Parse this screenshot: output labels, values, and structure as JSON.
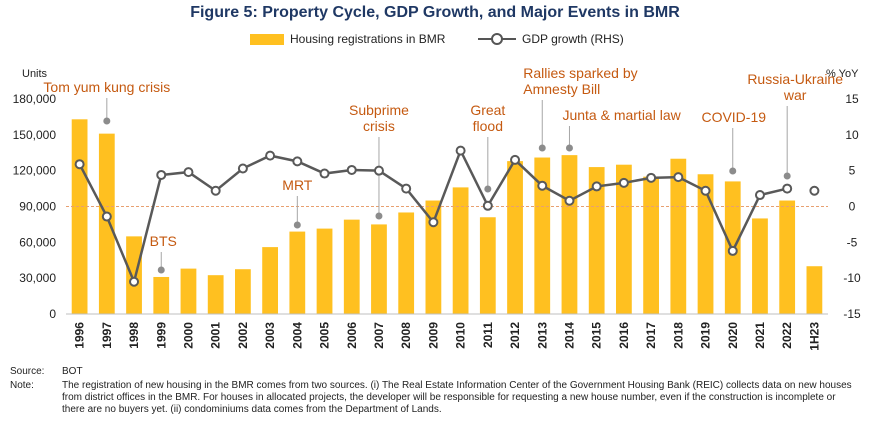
{
  "title": "Figure 5: Property Cycle, GDP Growth, and Major Events in BMR",
  "legend": {
    "bars": "Housing registrations in BMR",
    "line": "GDP growth (RHS)"
  },
  "colors": {
    "bar": "#ffc020",
    "line": "#595959",
    "annotation": "#c55a11",
    "zero_line": "#e8a070"
  },
  "chart_data": {
    "type": "bar",
    "title": "Figure 5: Property Cycle, GDP Growth, and Major Events in BMR",
    "categories": [
      "1996",
      "1997",
      "1998",
      "1999",
      "2000",
      "2001",
      "2002",
      "2003",
      "2004",
      "2005",
      "2006",
      "2007",
      "2008",
      "2009",
      "2010",
      "2011",
      "2012",
      "2013",
      "2014",
      "2015",
      "2016",
      "2017",
      "2018",
      "2019",
      "2020",
      "2021",
      "2022",
      "1H23"
    ],
    "y_left_label": "Units",
    "y_right_label": "% YoY",
    "ylim_left": [
      0,
      180000
    ],
    "ylim_right": [
      -15,
      15
    ],
    "yticks_left": [
      "0",
      "30,000",
      "60,000",
      "90,000",
      "120,000",
      "150,000",
      "180,000"
    ],
    "yticks_right": [
      "-15",
      "-10",
      "-5",
      "0",
      "5",
      "10",
      "15"
    ],
    "series": [
      {
        "name": "Housing registrations in BMR",
        "type": "bar",
        "axis": "left",
        "values": [
          163000,
          151000,
          65000,
          31000,
          38000,
          32500,
          37500,
          56000,
          69000,
          71500,
          79000,
          75000,
          85000,
          95000,
          106000,
          81000,
          128000,
          131000,
          133000,
          123000,
          125000,
          115000,
          130000,
          117000,
          111000,
          80000,
          95000,
          40000
        ]
      },
      {
        "name": "GDP growth (RHS)",
        "type": "line",
        "axis": "right",
        "values": [
          5.9,
          -1.4,
          -10.5,
          4.4,
          4.8,
          2.2,
          5.3,
          7.1,
          6.3,
          4.6,
          5.1,
          5.0,
          2.5,
          -2.2,
          7.8,
          0.1,
          6.5,
          2.9,
          0.8,
          2.8,
          3.3,
          4.0,
          4.1,
          2.2,
          -6.2,
          1.6,
          2.5,
          2.2
        ]
      }
    ],
    "annotations": [
      {
        "label": "Tom yum kung crisis",
        "category": "1997"
      },
      {
        "label": "BTS",
        "category": "1999"
      },
      {
        "label": "MRT",
        "category": "2004"
      },
      {
        "label": "Subprime crisis",
        "category": "2007"
      },
      {
        "label": "Great flood",
        "category": "2011"
      },
      {
        "label": "Rallies sparked by Amnesty Bill",
        "category": "2013"
      },
      {
        "label": "Junta & martial law",
        "category": "2014"
      },
      {
        "label": "COVID-19",
        "category": "2020"
      },
      {
        "label": "Russia-Ukraine war",
        "category": "2022"
      }
    ]
  },
  "footer": {
    "source_label": "Source:",
    "source_text": "BOT",
    "note_label": "Note:",
    "note_text": "The registration of new housing in the BMR comes from two sources. (i) The Real Estate Information Center of the Government Housing Bank (REIC) collects data on new houses from district offices in the BMR. For houses in allocated projects, the developer will be responsible for requesting a new house number, even if the construction is incomplete or there are no buyers yet. (ii) condominiums data comes from the Department of Lands."
  }
}
